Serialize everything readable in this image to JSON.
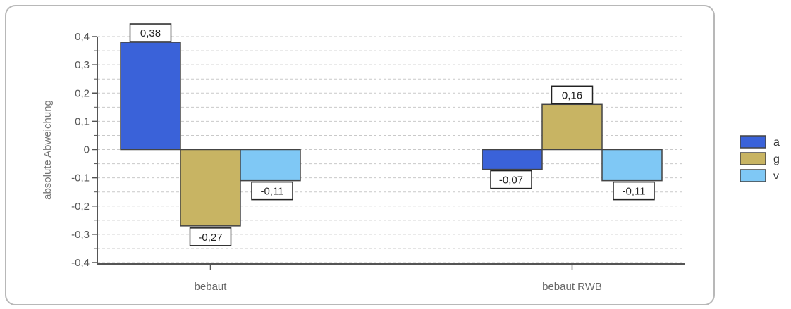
{
  "chart_data": {
    "type": "bar",
    "categories": [
      "bebaut",
      "bebaut RWB"
    ],
    "series": [
      {
        "name": "a",
        "values": [
          0.38,
          -0.07
        ],
        "labels": [
          "0,38",
          "-0,07"
        ],
        "color": "#3a62d9"
      },
      {
        "name": "g",
        "values": [
          -0.27,
          0.16
        ],
        "labels": [
          "-0,27",
          "0,16"
        ],
        "color": "#c8b463"
      },
      {
        "name": "v",
        "values": [
          -0.11,
          -0.11
        ],
        "labels": [
          "-0,11",
          "-0,11"
        ],
        "color": "#7fc8f5"
      }
    ],
    "ylabel": "absolute Abweichung",
    "xlabel": "",
    "ylim": [
      -0.4,
      0.4
    ],
    "yticks": [
      0.4,
      0.3,
      0.2,
      0.1,
      0,
      -0.1,
      -0.2,
      -0.3,
      -0.4
    ],
    "ytick_labels": [
      "0,4",
      "0,3",
      "0,2",
      "0,1",
      "0",
      "-0,1",
      "-0,2",
      "-0,3",
      "-0,4"
    ],
    "grid": "dashed horizontal",
    "legend_position": "right"
  }
}
